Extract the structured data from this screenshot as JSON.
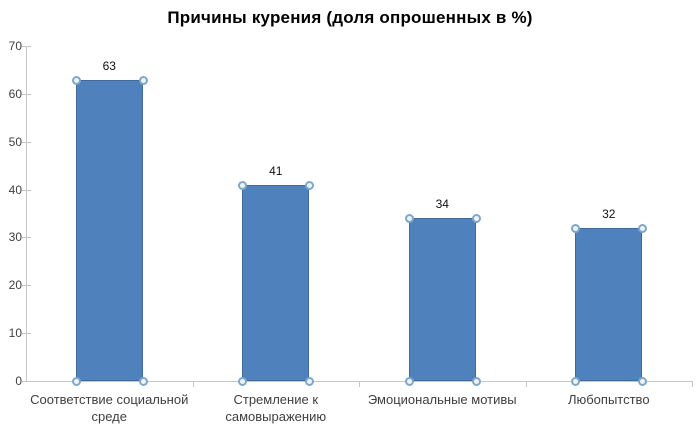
{
  "chart_data": {
    "type": "bar",
    "title": "Причины курения (доля опрошенных в %)",
    "categories": [
      "Соответствие социальной среде",
      "Стремление к самовыражению",
      "Эмоциональные мотивы",
      "Любопытство"
    ],
    "values": [
      63,
      41,
      34,
      32
    ],
    "data_labels": [
      "63",
      "41",
      "34",
      "32"
    ],
    "xlabel": "",
    "ylabel": "",
    "ylim": [
      0,
      70
    ],
    "ytick_interval": 10,
    "ytick_labels": [
      "0",
      "10",
      "20",
      "30",
      "40",
      "50",
      "60",
      "70"
    ],
    "grid": false,
    "legend": "none",
    "series_selected": true,
    "colors": {
      "bar_fill": "#4f81bd",
      "bar_border": "#41699c",
      "axis_line": "#c6c6c6",
      "tick_text": "#3f3f3f",
      "title_text": "#000000",
      "value_label_text": "#111111",
      "handle_border": "#7da7cd",
      "handle_fill": "#eef4fa"
    }
  }
}
